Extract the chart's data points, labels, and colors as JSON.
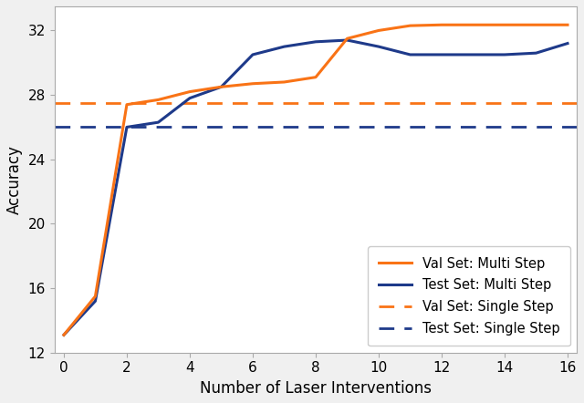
{
  "val_multi_x": [
    0,
    1,
    2,
    3,
    4,
    5,
    6,
    7,
    8,
    9,
    10,
    11,
    12,
    13,
    14,
    15,
    16
  ],
  "val_multi_y": [
    13.1,
    15.5,
    27.4,
    27.7,
    28.2,
    28.5,
    28.7,
    28.8,
    29.1,
    31.5,
    32.0,
    32.3,
    32.35,
    32.35,
    32.35,
    32.35,
    32.35
  ],
  "test_multi_x": [
    0,
    1,
    2,
    3,
    4,
    5,
    6,
    7,
    8,
    9,
    10,
    11,
    12,
    13,
    14,
    15,
    16
  ],
  "test_multi_y": [
    13.1,
    15.2,
    26.0,
    26.3,
    27.8,
    28.5,
    30.5,
    31.0,
    31.3,
    31.4,
    31.0,
    30.5,
    30.5,
    30.5,
    30.5,
    30.6,
    31.2
  ],
  "val_single": 27.5,
  "test_single": 26.0,
  "val_color": "#F97316",
  "test_color": "#1E3A8A",
  "xlabel": "Number of Laser Interventions",
  "ylabel": "Accuracy",
  "xlim": [
    -0.3,
    16.3
  ],
  "ylim": [
    12,
    33.5
  ],
  "yticks": [
    12,
    16,
    20,
    24,
    28,
    32
  ],
  "xticks": [
    0,
    2,
    4,
    6,
    8,
    10,
    12,
    14,
    16
  ],
  "legend_labels": [
    "Val Set: Multi Step",
    "Test Set: Multi Step",
    "Val Set: Single Step",
    "Test Set: Single Step"
  ],
  "linewidth": 2.2,
  "dashed_linewidth": 2.0,
  "figsize": [
    6.4,
    4.42
  ],
  "dpi": 100,
  "bg_color": "#f0f0f0",
  "plot_bg_color": "#ffffff"
}
